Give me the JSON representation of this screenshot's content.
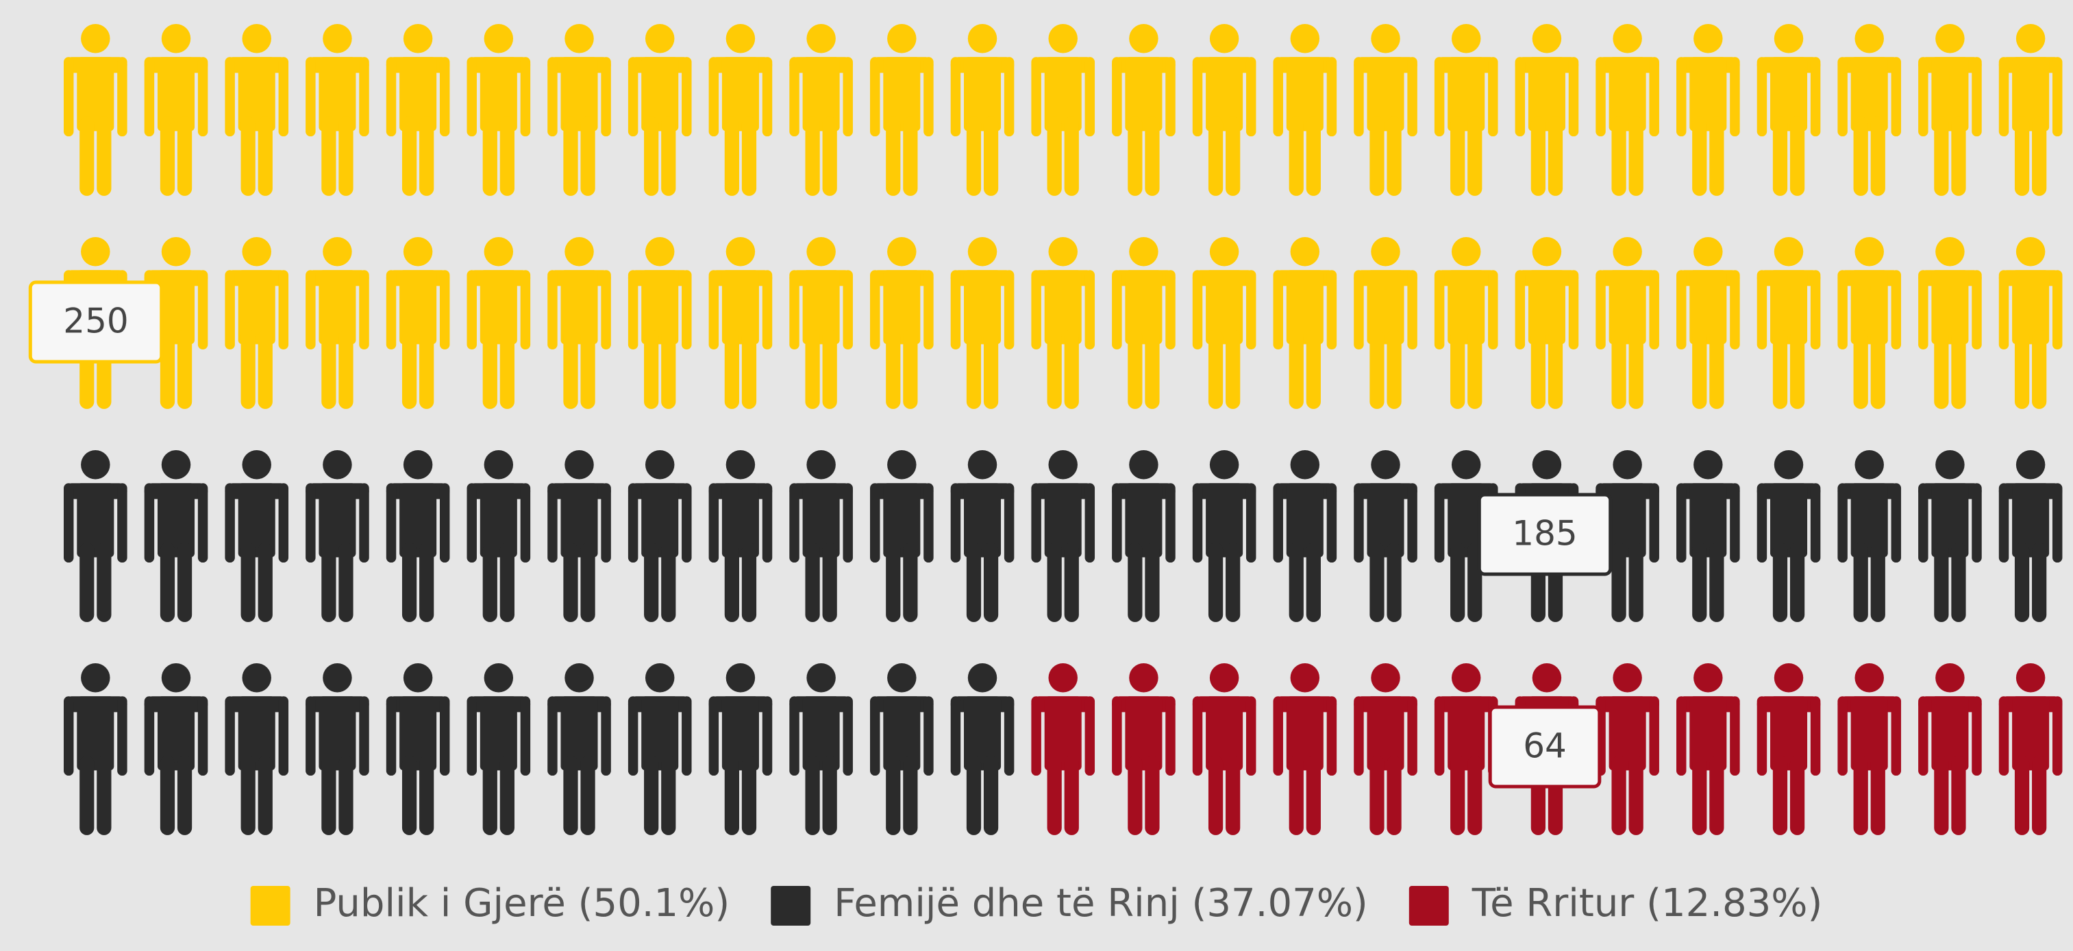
{
  "chart_data": {
    "type": "pictogram",
    "series": [
      {
        "name": "Publik i Gjerë (50.1%)",
        "color": "#ffcb05",
        "values": [
          250
        ]
      },
      {
        "name": "Femijë dhe të Rinj (37.07%)",
        "color": "#2b2b2b",
        "values": [
          185
        ]
      },
      {
        "name": "Të Rritur (12.83%)",
        "color": "#a50d1f",
        "values": [
          64
        ]
      }
    ]
  }
}
